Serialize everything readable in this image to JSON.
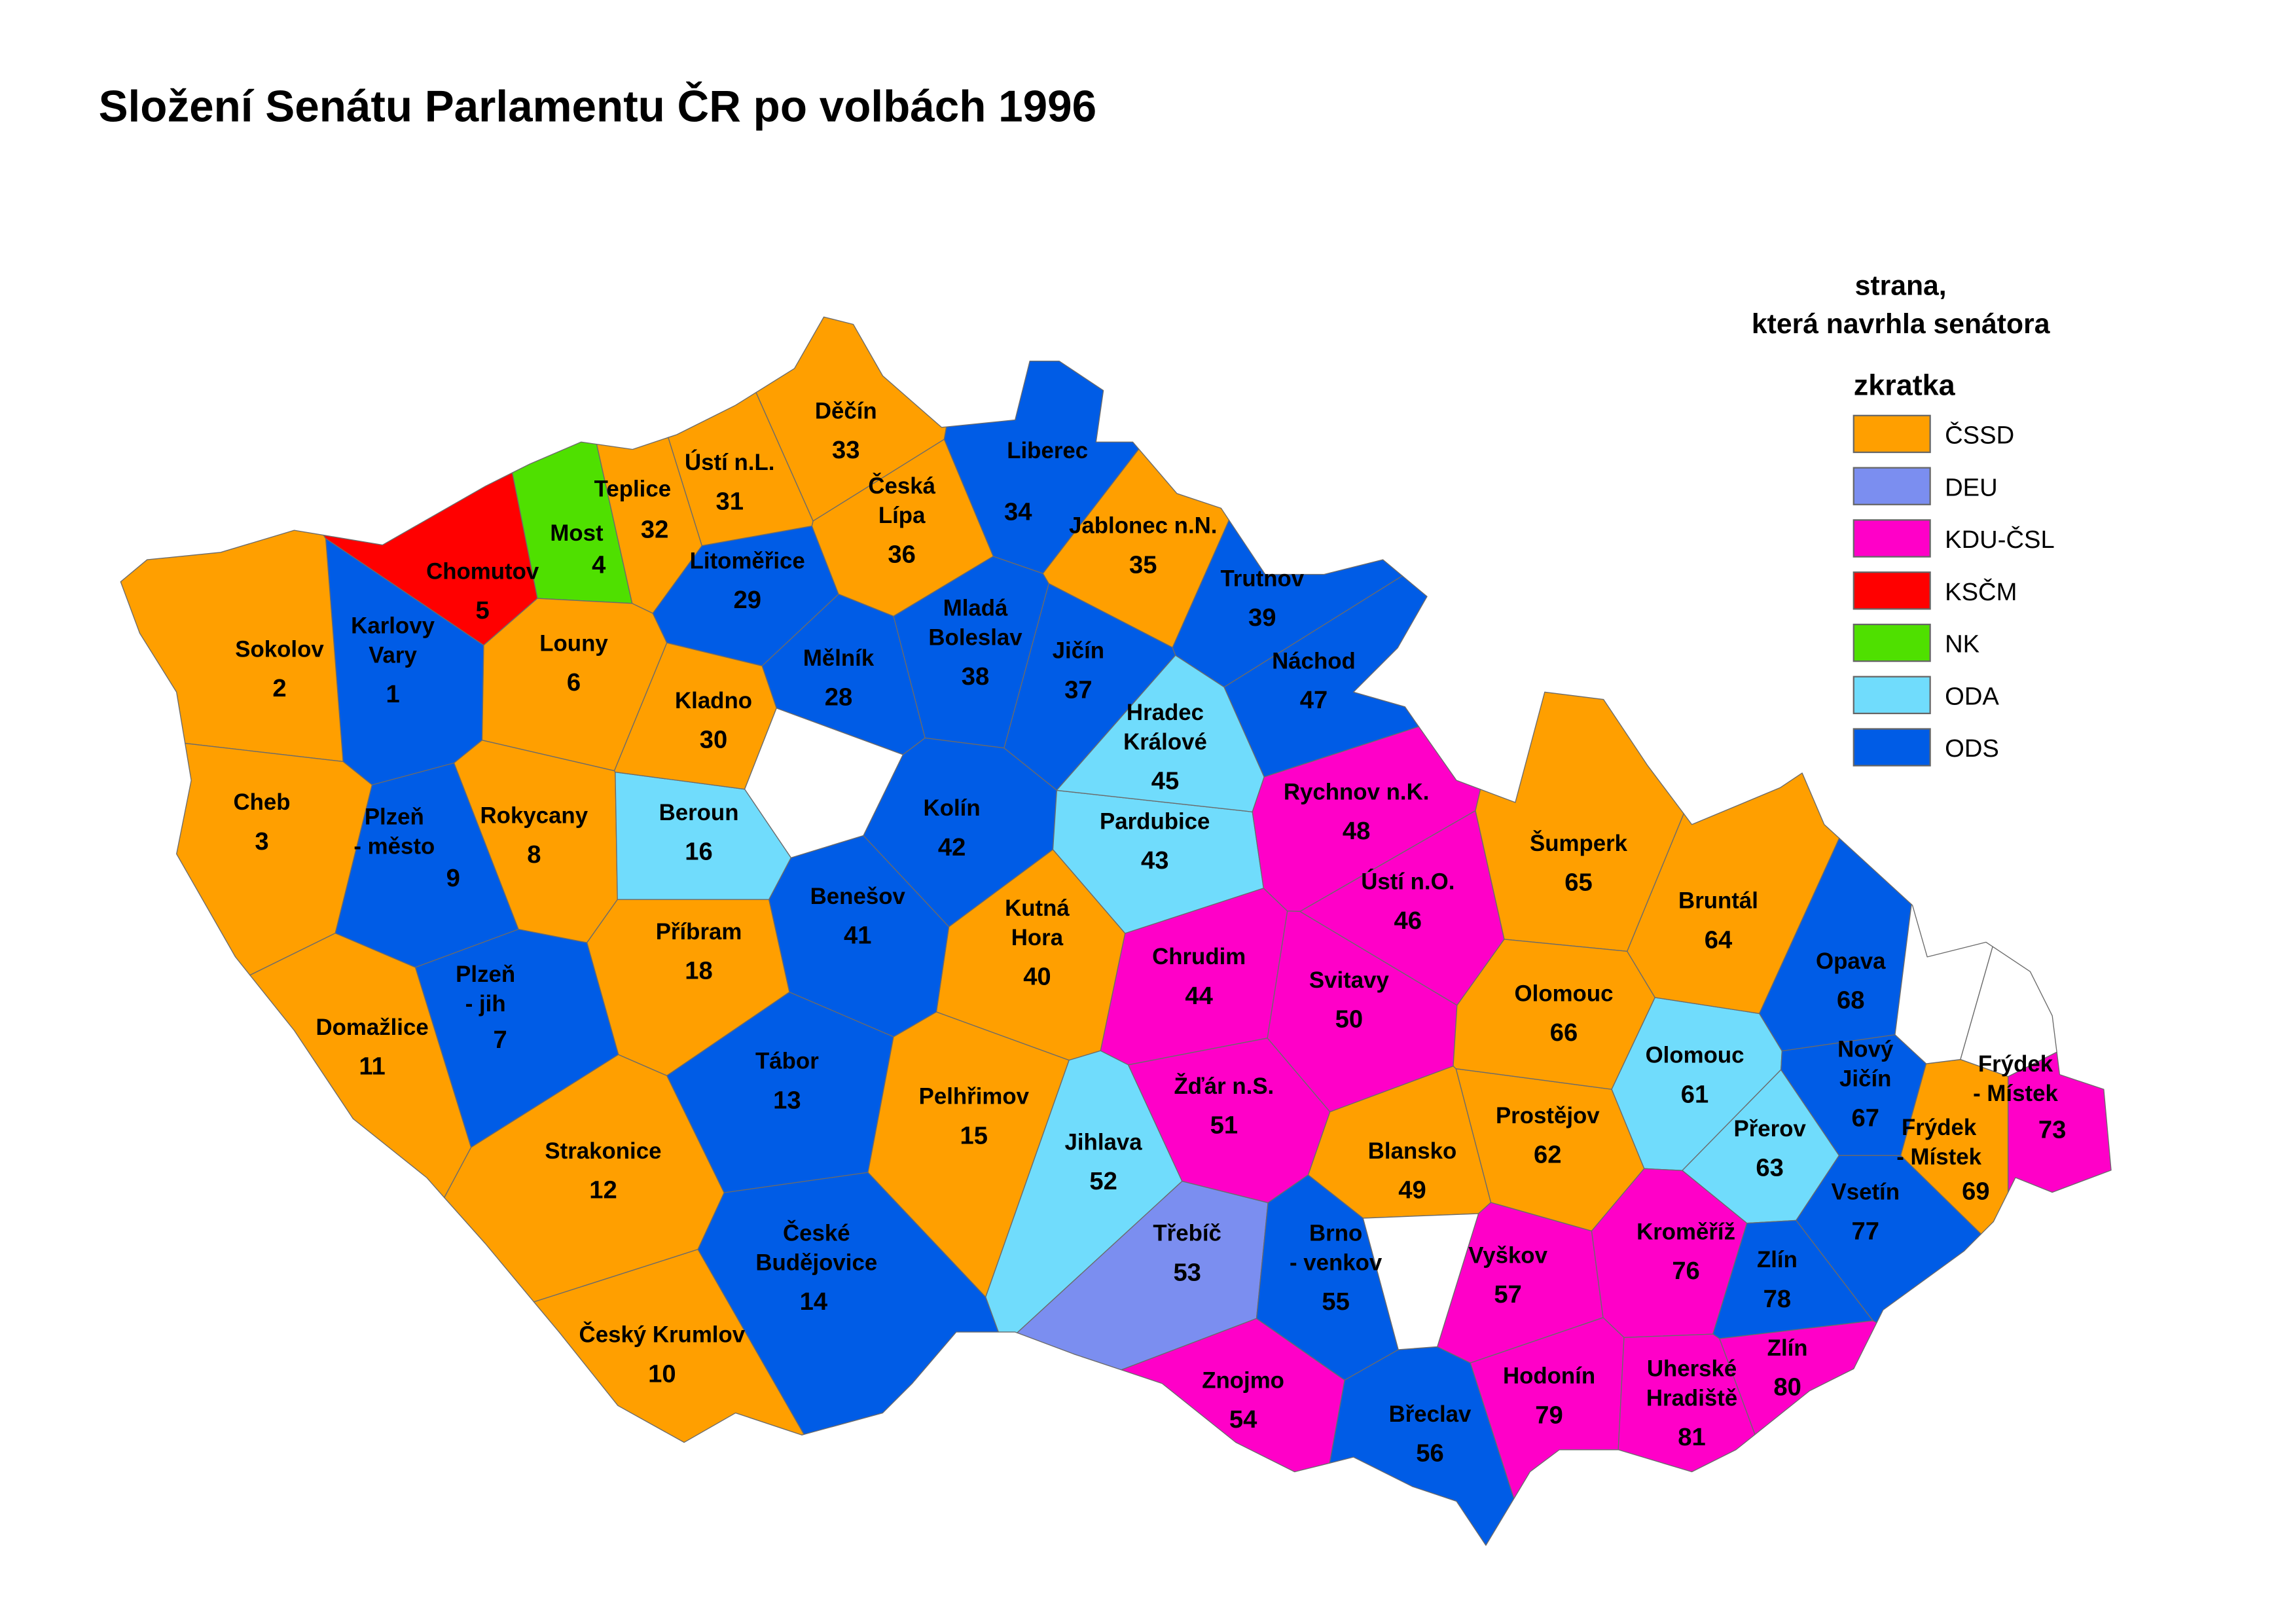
{
  "title": "Složení Senátu Parlamentu ČR po volbách 1996",
  "legend": {
    "heading_line1": "strana,",
    "heading_line2": "která navrhla senátora",
    "subheading": "zkratka",
    "items": [
      {
        "abbr": "ČSSD",
        "color": "#ff9f00"
      },
      {
        "abbr": "DEU",
        "color": "#7b8ef0"
      },
      {
        "abbr": "KDU-ČSL",
        "color": "#ff00c8"
      },
      {
        "abbr": "KSČM",
        "color": "#ff0000"
      },
      {
        "abbr": "NK",
        "color": "#4fe000"
      },
      {
        "abbr": "ODA",
        "color": "#70dcfc"
      },
      {
        "abbr": "ODS",
        "color": "#005ce6"
      }
    ]
  },
  "districts": [
    {
      "number": "1",
      "name_lines": [
        "Karlovy",
        "Vary"
      ],
      "party": "ODS"
    },
    {
      "number": "2",
      "name_lines": [
        "Sokolov"
      ],
      "party": "ČSSD"
    },
    {
      "number": "3",
      "name_lines": [
        "Cheb"
      ],
      "party": "ČSSD"
    },
    {
      "number": "4",
      "name_lines": [
        "Most"
      ],
      "party": "NK"
    },
    {
      "number": "5",
      "name_lines": [
        "Chomutov"
      ],
      "party": "KSČM"
    },
    {
      "number": "6",
      "name_lines": [
        "Louny"
      ],
      "party": "ČSSD"
    },
    {
      "number": "7",
      "name_lines": [
        "Plzeň",
        "- jih"
      ],
      "party": "ODS"
    },
    {
      "number": "8",
      "name_lines": [
        "Rokycany"
      ],
      "party": "ČSSD"
    },
    {
      "number": "9",
      "name_lines": [
        "Plzeň",
        "- město"
      ],
      "party": "ODS"
    },
    {
      "number": "10",
      "name_lines": [
        "Český Krumlov"
      ],
      "party": "ČSSD"
    },
    {
      "number": "11",
      "name_lines": [
        "Domažlice"
      ],
      "party": "ČSSD"
    },
    {
      "number": "12",
      "name_lines": [
        "Strakonice"
      ],
      "party": "ČSSD"
    },
    {
      "number": "13",
      "name_lines": [
        "Tábor"
      ],
      "party": "ODS"
    },
    {
      "number": "14",
      "name_lines": [
        "České",
        "Budějovice"
      ],
      "party": "ODS"
    },
    {
      "number": "15",
      "name_lines": [
        "Pelhřimov"
      ],
      "party": "ČSSD"
    },
    {
      "number": "16",
      "name_lines": [
        "Beroun"
      ],
      "party": "ODA"
    },
    {
      "number": "18",
      "name_lines": [
        "Příbram"
      ],
      "party": "ČSSD"
    },
    {
      "number": "28",
      "name_lines": [
        "Mělník"
      ],
      "party": "ODS"
    },
    {
      "number": "29",
      "name_lines": [
        "Litoměřice"
      ],
      "party": "ODS"
    },
    {
      "number": "30",
      "name_lines": [
        "Kladno"
      ],
      "party": "ČSSD"
    },
    {
      "number": "31",
      "name_lines": [
        "Ústí n.L."
      ],
      "party": "ČSSD"
    },
    {
      "number": "32",
      "name_lines": [
        "Teplice"
      ],
      "party": "ČSSD"
    },
    {
      "number": "33",
      "name_lines": [
        "Děčín"
      ],
      "party": "ČSSD"
    },
    {
      "number": "34",
      "name_lines": [
        "Liberec"
      ],
      "party": "ODS"
    },
    {
      "number": "35",
      "name_lines": [
        "Jablonec n.N."
      ],
      "party": "ČSSD"
    },
    {
      "number": "36",
      "name_lines": [
        "Česká",
        "Lípa"
      ],
      "party": "ČSSD"
    },
    {
      "number": "37",
      "name_lines": [
        "Jičín"
      ],
      "party": "ODS"
    },
    {
      "number": "38",
      "name_lines": [
        "Mladá",
        "Boleslav"
      ],
      "party": "ODS"
    },
    {
      "number": "39",
      "name_lines": [
        "Trutnov"
      ],
      "party": "ODS"
    },
    {
      "number": "40",
      "name_lines": [
        "Kutná",
        "Hora"
      ],
      "party": "ČSSD"
    },
    {
      "number": "41",
      "name_lines": [
        "Benešov"
      ],
      "party": "ODS"
    },
    {
      "number": "42",
      "name_lines": [
        "Kolín"
      ],
      "party": "ODS"
    },
    {
      "number": "43",
      "name_lines": [
        "Pardubice"
      ],
      "party": "ODA"
    },
    {
      "number": "44",
      "name_lines": [
        "Chrudim"
      ],
      "party": "KDU-ČSL"
    },
    {
      "number": "45",
      "name_lines": [
        "Hradec",
        "Králové"
      ],
      "party": "ODA"
    },
    {
      "number": "46",
      "name_lines": [
        "Ústí n.O."
      ],
      "party": "KDU-ČSL"
    },
    {
      "number": "47",
      "name_lines": [
        "Náchod"
      ],
      "party": "ODS"
    },
    {
      "number": "48",
      "name_lines": [
        "Rychnov n.K."
      ],
      "party": "KDU-ČSL"
    },
    {
      "number": "49",
      "name_lines": [
        "Blansko"
      ],
      "party": "ČSSD"
    },
    {
      "number": "50",
      "name_lines": [
        "Svitavy"
      ],
      "party": "KDU-ČSL"
    },
    {
      "number": "51",
      "name_lines": [
        "Žďár n.S."
      ],
      "party": "KDU-ČSL"
    },
    {
      "number": "52",
      "name_lines": [
        "Jihlava"
      ],
      "party": "ODA"
    },
    {
      "number": "53",
      "name_lines": [
        "Třebíč"
      ],
      "party": "DEU"
    },
    {
      "number": "54",
      "name_lines": [
        "Znojmo"
      ],
      "party": "KDU-ČSL"
    },
    {
      "number": "55",
      "name_lines": [
        "Brno",
        "- venkov"
      ],
      "party": "ODS"
    },
    {
      "number": "56",
      "name_lines": [
        "Břeclav"
      ],
      "party": "ODS"
    },
    {
      "number": "57",
      "name_lines": [
        "Vyškov"
      ],
      "party": "KDU-ČSL"
    },
    {
      "number": "61",
      "name_lines": [
        "Olomouc"
      ],
      "party": "ODA"
    },
    {
      "number": "62",
      "name_lines": [
        "Prostějov"
      ],
      "party": "ČSSD"
    },
    {
      "number": "63",
      "name_lines": [
        "Přerov"
      ],
      "party": "ODA"
    },
    {
      "number": "64",
      "name_lines": [
        "Bruntál"
      ],
      "party": "ČSSD"
    },
    {
      "number": "65",
      "name_lines": [
        "Šumperk"
      ],
      "party": "ČSSD"
    },
    {
      "number": "66",
      "name_lines": [
        "Olomouc"
      ],
      "party": "ČSSD"
    },
    {
      "number": "67",
      "name_lines": [
        "Nový",
        "Jičín"
      ],
      "party": "ODS"
    },
    {
      "number": "68",
      "name_lines": [
        "Opava"
      ],
      "party": "ODS"
    },
    {
      "number": "69",
      "name_lines": [
        "Frýdek",
        "- Místek"
      ],
      "party": "ČSSD"
    },
    {
      "number": "73",
      "name_lines": [
        "Frýdek",
        "- Místek"
      ],
      "party": "KDU-ČSL"
    },
    {
      "number": "76",
      "name_lines": [
        "Kroměříž"
      ],
      "party": "KDU-ČSL"
    },
    {
      "number": "77",
      "name_lines": [
        "Vsetín"
      ],
      "party": "ODS"
    },
    {
      "number": "78",
      "name_lines": [
        "Zlín"
      ],
      "party": "ODS"
    },
    {
      "number": "79",
      "name_lines": [
        "Hodonín"
      ],
      "party": "KDU-ČSL"
    },
    {
      "number": "80",
      "name_lines": [
        "Zlín"
      ],
      "party": "KDU-ČSL"
    },
    {
      "number": "81",
      "name_lines": [
        "Uherské",
        "Hradiště"
      ],
      "party": "KDU-ČSL"
    }
  ]
}
